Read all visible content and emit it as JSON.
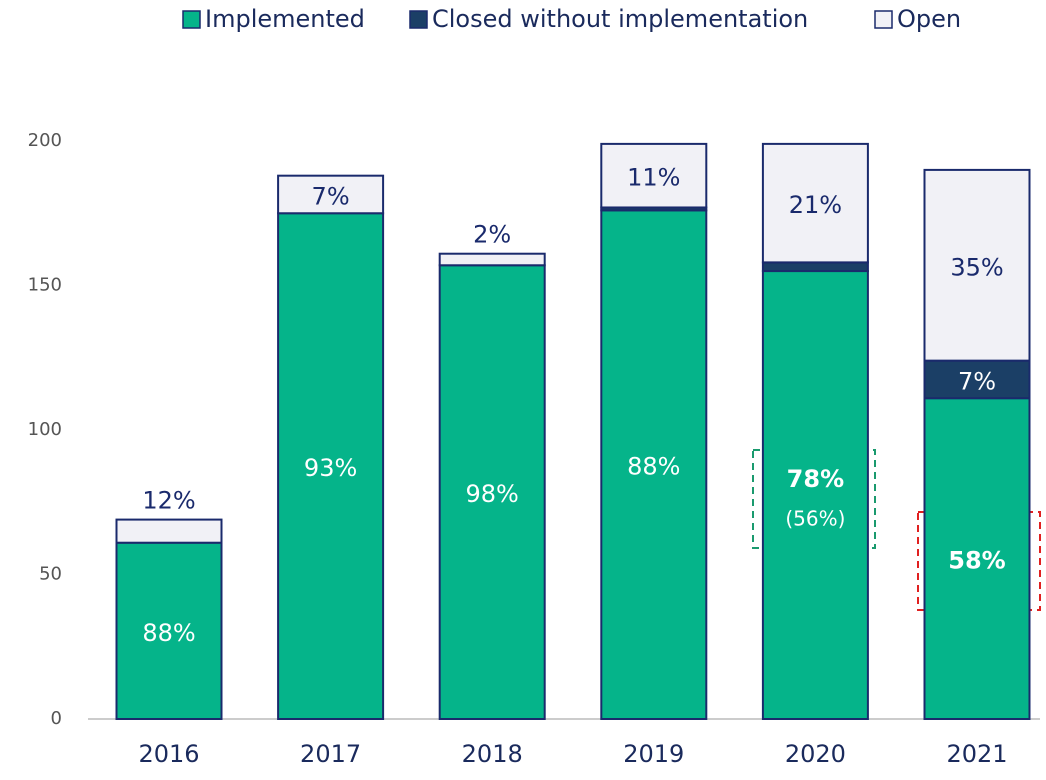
{
  "chart_data": {
    "type": "stacked_bar",
    "categories": [
      "2016",
      "2017",
      "2018",
      "2019",
      "2020",
      "2021"
    ],
    "series": [
      {
        "name": "Implemented",
        "color": "#05b48a",
        "values": [
          61,
          175,
          157,
          176,
          155,
          111
        ],
        "share_labels": [
          "88%",
          "93%",
          "98%",
          "88%",
          "78%",
          "58%"
        ]
      },
      {
        "name": "Closed without implementation",
        "color": "#1b3f66",
        "values": [
          0,
          0,
          0,
          1,
          3,
          13
        ],
        "share_labels": [
          null,
          null,
          null,
          null,
          null,
          "7%"
        ]
      },
      {
        "name": "Open",
        "color": "#f1f1f6",
        "values": [
          8,
          13,
          4,
          22,
          41,
          66
        ],
        "share_labels": [
          "12%",
          "7%",
          "2%",
          "11%",
          "21%",
          "35%"
        ]
      }
    ],
    "annotations": [
      {
        "index": 4,
        "text": "(56%)"
      }
    ],
    "ylim": [
      0,
      200
    ],
    "yticks": [
      0,
      50,
      100,
      150,
      200
    ],
    "grid": false
  }
}
